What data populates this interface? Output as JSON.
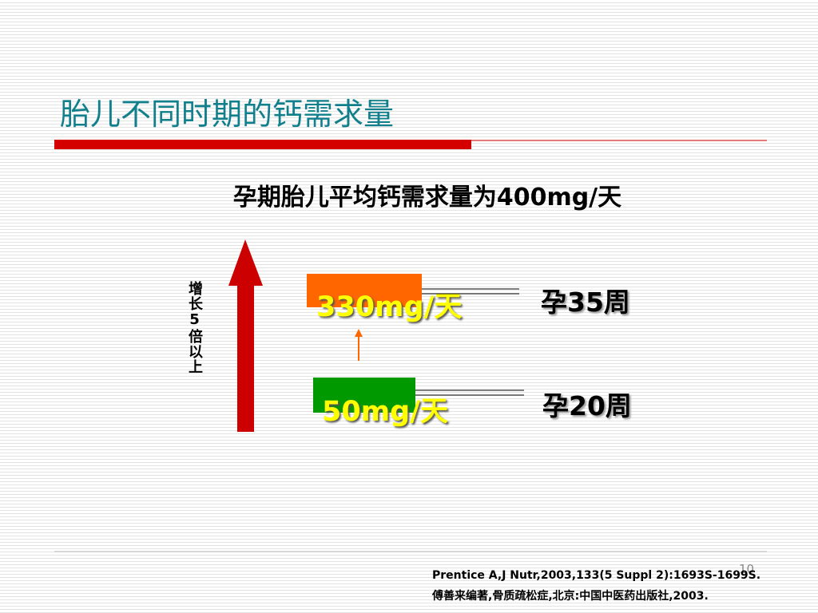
{
  "title": "胎儿不同时期的钙需求量",
  "subtitle": "孕期胎儿平均钙需求量为400mg/天",
  "side_label": "增长5倍以上",
  "levels": [
    {
      "amount": "330mg/天",
      "week": "孕35周"
    },
    {
      "amount": "50mg/天",
      "week": "孕20周"
    }
  ],
  "page_number": "10",
  "references": [
    "Prentice A,J Nutr,2003,133(5 Suppl 2):1693S-1699S.",
    "傅善来编著,骨质疏松症,北京:中国中医药出版社,2003."
  ]
}
